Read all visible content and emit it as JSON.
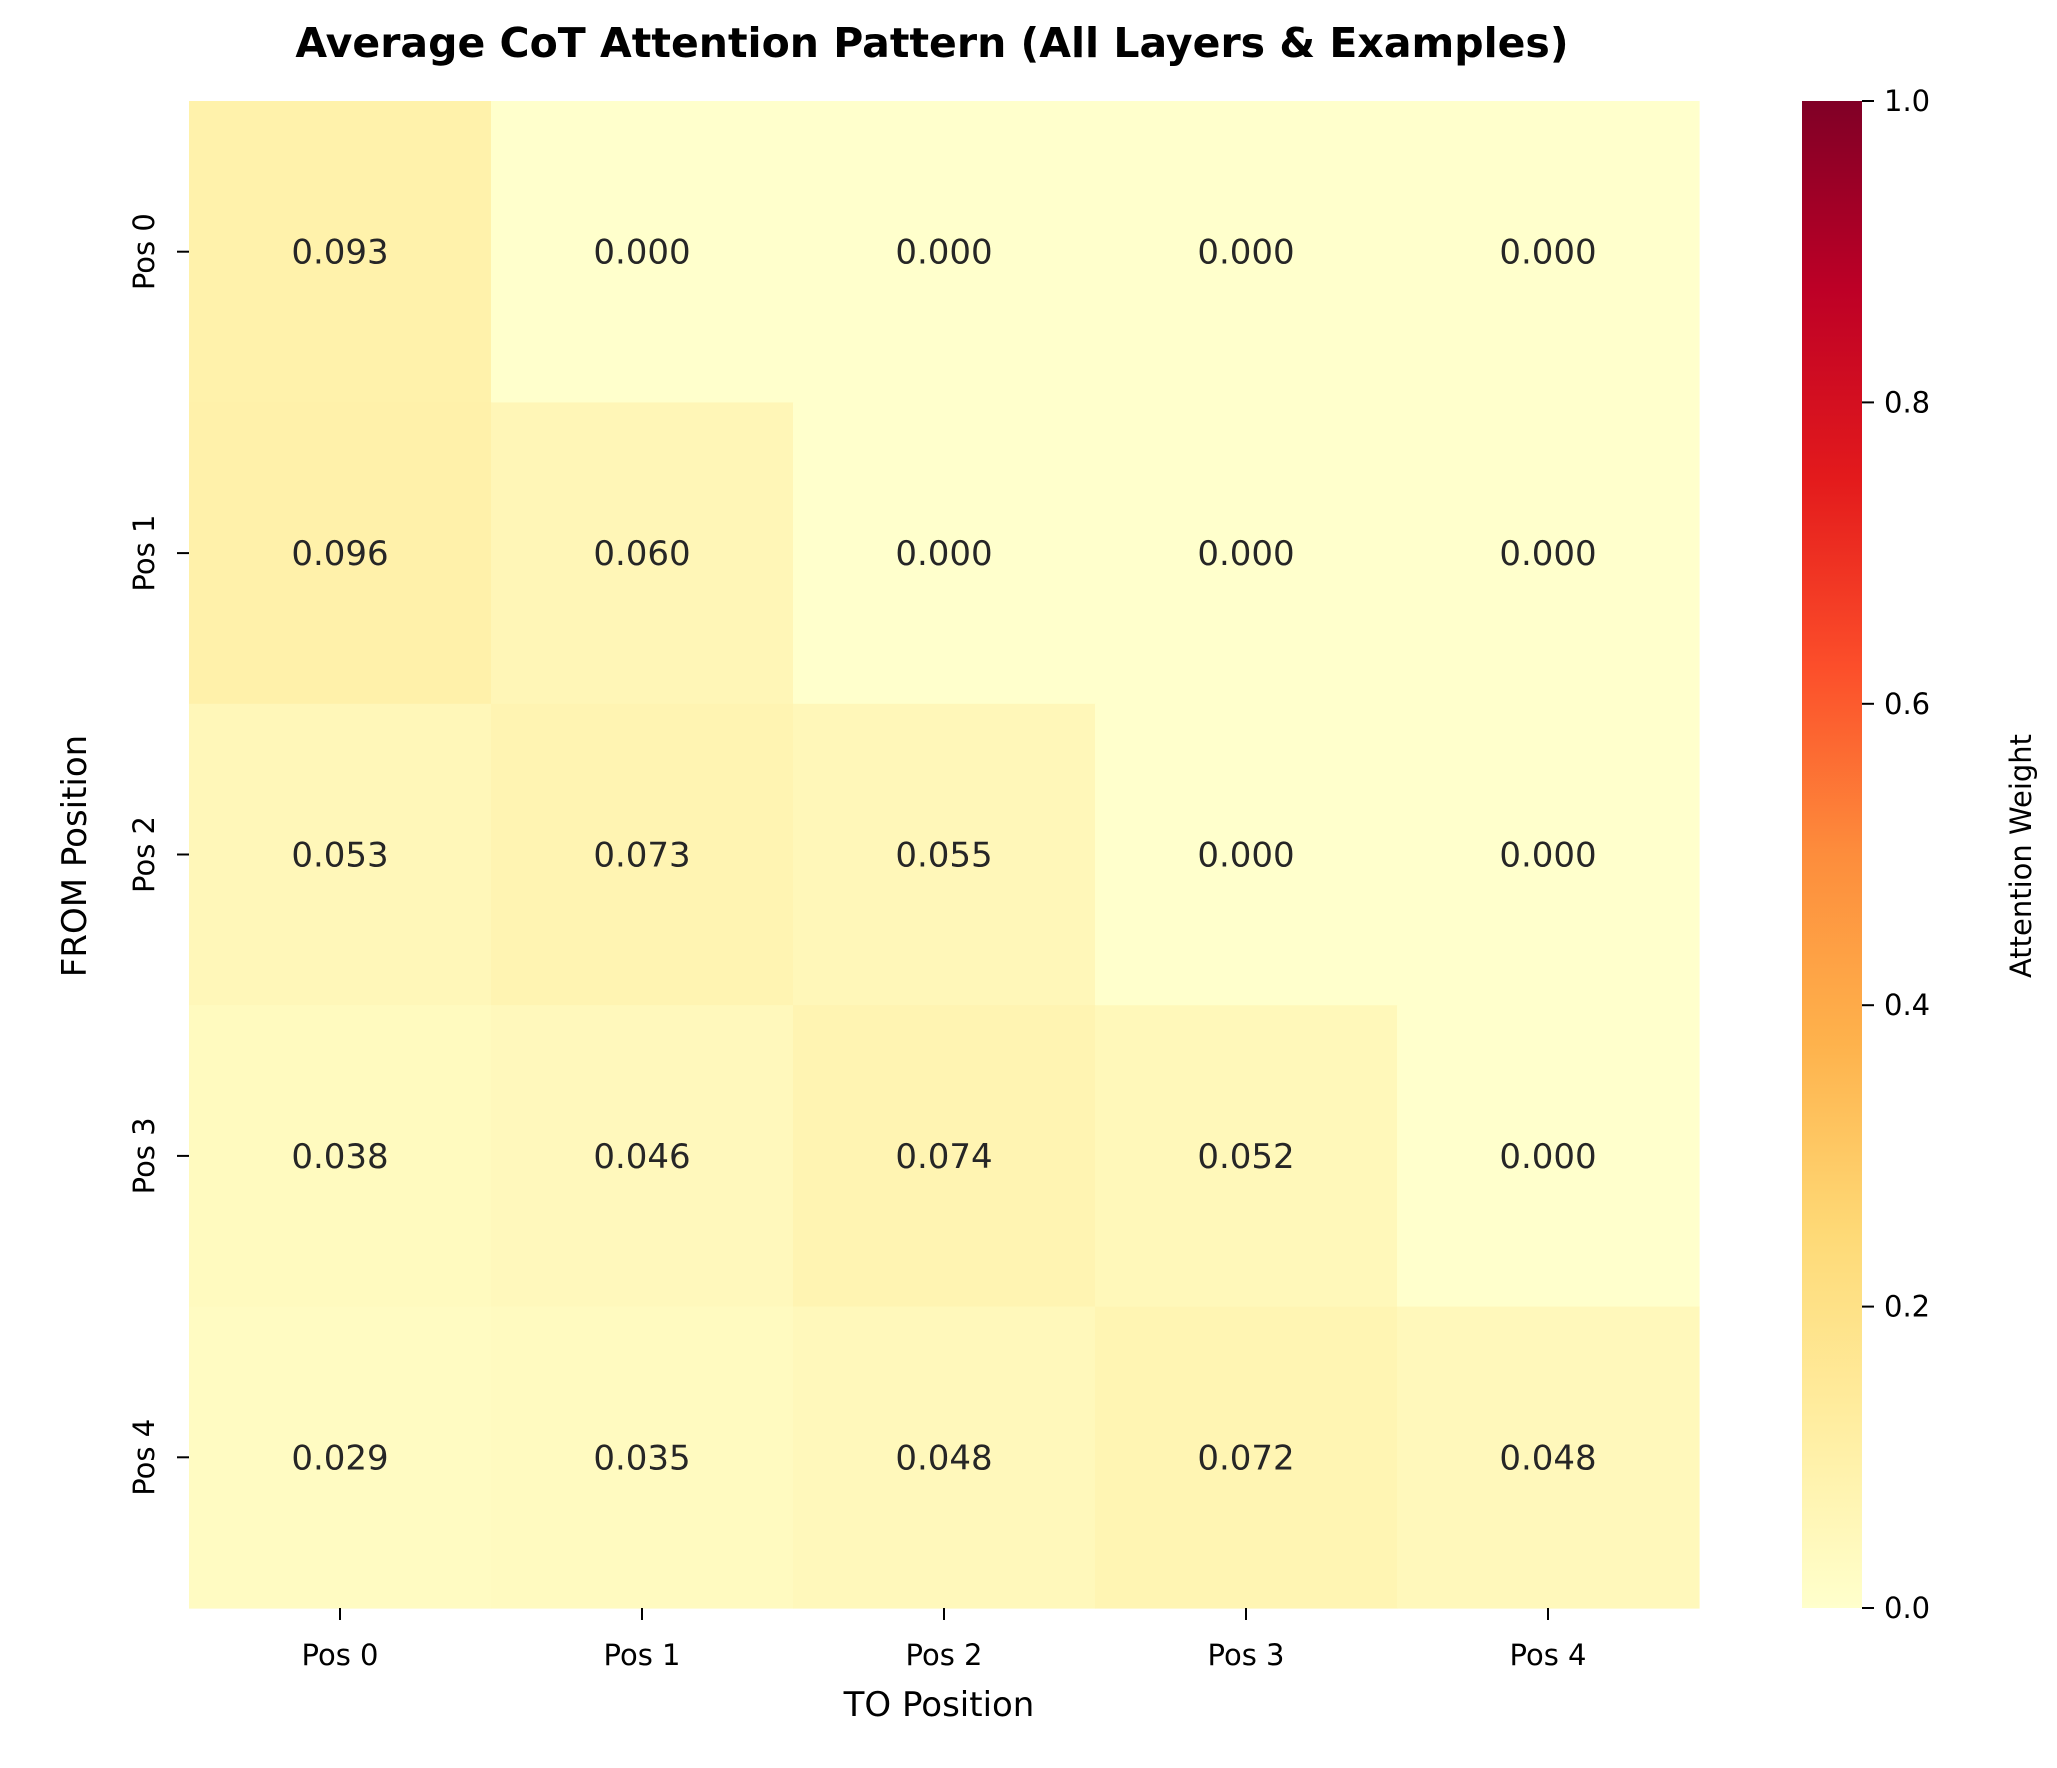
{
  "chart_data": {
    "type": "heatmap",
    "title": "Average CoT Attention Pattern (All Layers & Examples)",
    "xlabel": "TO Position",
    "ylabel": "FROM Position",
    "x_categories": [
      "Pos 0",
      "Pos 1",
      "Pos 2",
      "Pos 3",
      "Pos 4"
    ],
    "y_categories": [
      "Pos 0",
      "Pos 1",
      "Pos 2",
      "Pos 3",
      "Pos 4"
    ],
    "values": [
      [
        0.093,
        0.0,
        0.0,
        0.0,
        0.0
      ],
      [
        0.096,
        0.06,
        0.0,
        0.0,
        0.0
      ],
      [
        0.053,
        0.073,
        0.055,
        0.0,
        0.0
      ],
      [
        0.038,
        0.046,
        0.074,
        0.052,
        0.0
      ],
      [
        0.029,
        0.035,
        0.048,
        0.072,
        0.048
      ]
    ],
    "value_format": "0.000",
    "colorbar": {
      "label": "Attention Weight",
      "range": [
        0.0,
        1.0
      ],
      "ticks": [
        0.0,
        0.2,
        0.4,
        0.6,
        0.8,
        1.0
      ],
      "tick_labels": [
        "0.0",
        "0.2",
        "0.4",
        "0.6",
        "0.8",
        "1.0"
      ],
      "colormap": "YlOrRd",
      "colors": [
        "#ffffcc",
        "#ffeda0",
        "#fed976",
        "#feb24c",
        "#fd8d3c",
        "#fc4e2a",
        "#e31a1c",
        "#bd0026",
        "#800026"
      ]
    },
    "grid": false,
    "legend": "colorbar-right"
  }
}
